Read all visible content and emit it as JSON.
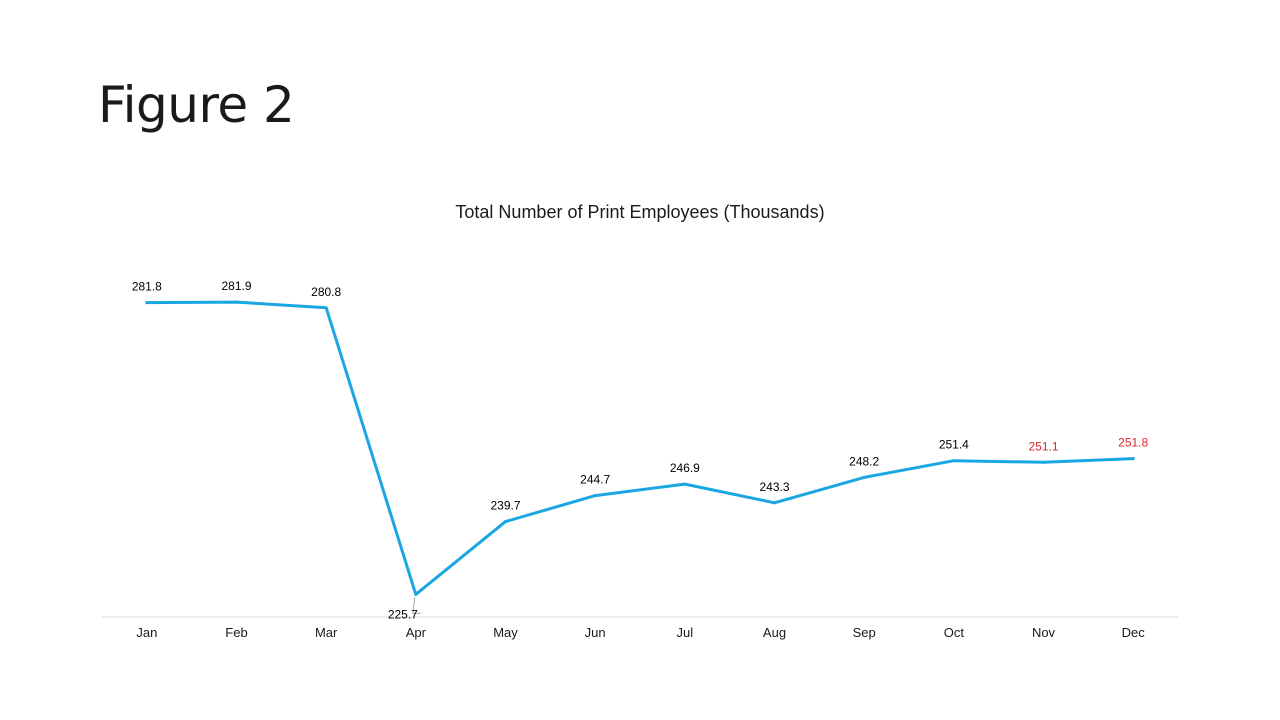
{
  "slide": {
    "title": "Figure 2"
  },
  "chart_data": {
    "type": "line",
    "title": "Total Number of Print Employees (Thousands)",
    "categories": [
      "Jan",
      "Feb",
      "Mar",
      "Apr",
      "May",
      "Jun",
      "Jul",
      "Aug",
      "Sep",
      "Oct",
      "Nov",
      "Dec"
    ],
    "series": [
      {
        "values": [
          281.8,
          281.9,
          280.8,
          225.7,
          239.7,
          244.7,
          246.9,
          243.3,
          248.2,
          251.4,
          251.1,
          251.8
        ],
        "color": "#1aa7e1"
      }
    ],
    "data_labels": [
      "281.8",
      "281.9",
      "280.8",
      "225.7",
      "239.7",
      "244.7",
      "246.9",
      "243.3",
      "248.2",
      "251.4",
      "251.1",
      "251.8"
    ],
    "label_colors": [
      "#000000",
      "#000000",
      "#000000",
      "#000000",
      "#000000",
      "#000000",
      "#000000",
      "#000000",
      "#000000",
      "#000000",
      "#d9262c",
      "#d9262c"
    ],
    "xlabel": "",
    "ylabel": "",
    "ylim": [
      220,
      290
    ],
    "grid": false,
    "legend": "none"
  }
}
